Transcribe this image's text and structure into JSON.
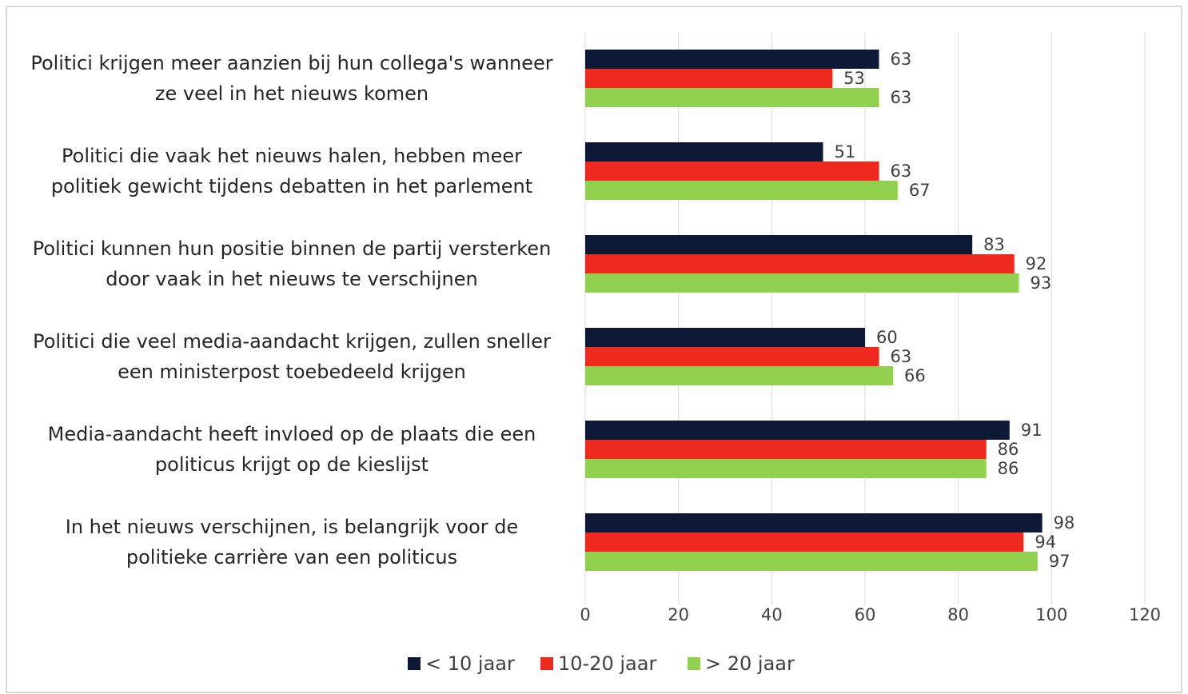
{
  "chart_data": {
    "type": "bar",
    "orientation": "horizontal",
    "categories": [
      "Politici krijgen meer aanzien bij hun collega's wanneer\nze veel in het nieuws komen",
      "Politici die vaak het nieuws halen, hebben meer\npolitiek gewicht tijdens debatten in het parlement",
      "Politici kunnen hun positie binnen de partij versterken\ndoor vaak in het nieuws te verschijnen",
      "Politici die veel media-aandacht krijgen, zullen sneller\neen ministerpost toebedeeld krijgen",
      "Media-aandacht heeft invloed op de plaats die een\npoliticus krijgt op de kieslijst",
      "In het nieuws verschijnen, is belangrijk voor de\npolitieke carrière van een politicus"
    ],
    "series": [
      {
        "name": "< 10 jaar",
        "color": "#0e1a35",
        "values": [
          63,
          51,
          83,
          60,
          91,
          98
        ]
      },
      {
        "name": "10-20 jaar",
        "color": "#ee2a1f",
        "values": [
          53,
          63,
          92,
          63,
          86,
          94
        ]
      },
      {
        "name": "> 20 jaar",
        "color": "#92d050",
        "values": [
          63,
          67,
          93,
          66,
          86,
          97
        ]
      }
    ],
    "xlim": [
      0,
      120
    ],
    "xticks": [
      0,
      20,
      40,
      60,
      80,
      100,
      120
    ],
    "grid": true,
    "legend": "bottom"
  }
}
